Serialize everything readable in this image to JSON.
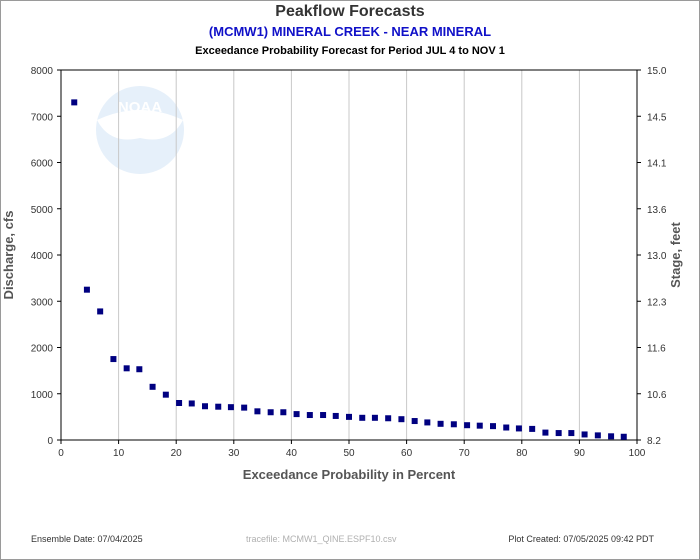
{
  "header": {
    "title": "Peakflow Forecasts",
    "station": "(MCMW1) MINERAL CREEK - NEAR MINERAL",
    "subtitle": "Exceedance Probability Forecast for Period JUL 4 to NOV 1"
  },
  "footer": {
    "ensemble_date": "Ensemble Date: 07/04/2025",
    "tracefile": "tracefile: MCMW1_QINE.ESPF10.csv",
    "plot_created": "Plot Created: 07/05/2025 09:42 PDT"
  },
  "watermark": {
    "text": "NOAA"
  },
  "colors": {
    "points": "#000080",
    "grid": "#c8c8c8",
    "station": "#1010c8"
  },
  "chart_data": {
    "type": "scatter",
    "xlabel": "Exceedance Probability in Percent",
    "ylabel": "Discharge, cfs",
    "y2label": "Stage, feet",
    "xlim": [
      0,
      100
    ],
    "ylim": [
      0,
      8000
    ],
    "xticks": [
      "0",
      "10",
      "20",
      "30",
      "40",
      "50",
      "60",
      "70",
      "80",
      "90",
      "100"
    ],
    "yticks": [
      "0",
      "1000",
      "2000",
      "3000",
      "4000",
      "5000",
      "6000",
      "7000",
      "8000"
    ],
    "y2ticks": [
      "8.2",
      "10.6",
      "11.6",
      "12.3",
      "13.0",
      "13.6",
      "14.1",
      "14.5",
      "15.0"
    ],
    "grid": "vertical",
    "x": [
      2.3,
      4.5,
      6.8,
      9.1,
      11.4,
      13.6,
      15.9,
      18.2,
      20.5,
      22.7,
      25.0,
      27.3,
      29.5,
      31.8,
      34.1,
      36.4,
      38.6,
      40.9,
      43.2,
      45.5,
      47.7,
      50.0,
      52.3,
      54.5,
      56.8,
      59.1,
      61.4,
      63.6,
      65.9,
      68.2,
      70.5,
      72.7,
      75.0,
      77.3,
      79.5,
      81.8,
      84.1,
      86.4,
      88.6,
      90.9,
      93.2,
      95.5,
      97.7
    ],
    "y": [
      7300,
      3250,
      2780,
      1750,
      1550,
      1530,
      1150,
      980,
      800,
      790,
      730,
      720,
      710,
      700,
      620,
      600,
      600,
      560,
      540,
      540,
      520,
      500,
      480,
      480,
      470,
      450,
      410,
      380,
      350,
      340,
      320,
      310,
      300,
      270,
      250,
      240,
      160,
      150,
      150,
      120,
      100,
      80,
      70
    ]
  }
}
